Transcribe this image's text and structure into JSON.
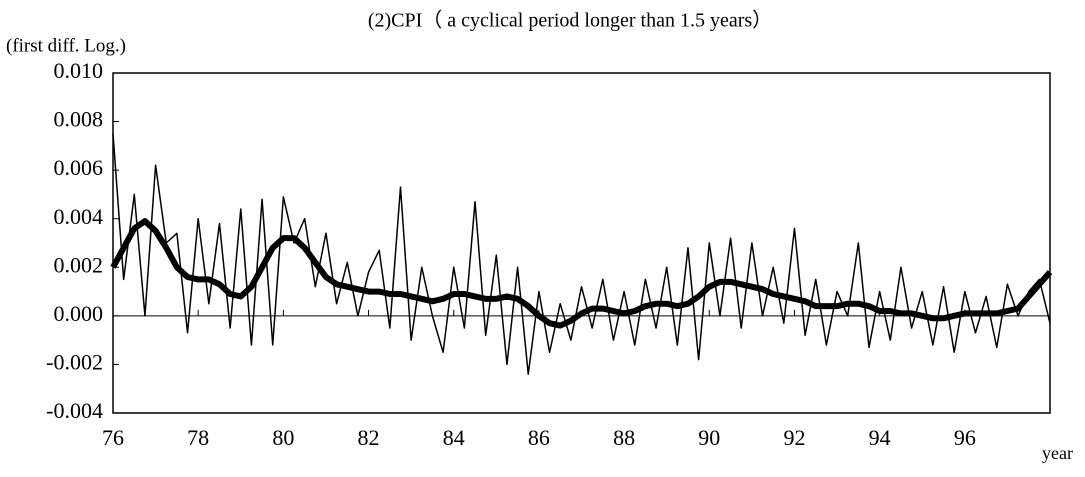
{
  "chart_data": {
    "type": "line",
    "title": "(2)CPI（ a cyclical period longer than 1.5 years）",
    "y_label": "(first diff. Log.)",
    "x_label": "year",
    "x": [
      76,
      76.25,
      76.5,
      76.75,
      77,
      77.25,
      77.5,
      77.75,
      78,
      78.25,
      78.5,
      78.75,
      79,
      79.25,
      79.5,
      79.75,
      80,
      80.25,
      80.5,
      80.75,
      81,
      81.25,
      81.5,
      81.75,
      82,
      82.25,
      82.5,
      82.75,
      83,
      83.25,
      83.5,
      83.75,
      84,
      84.25,
      84.5,
      84.75,
      85,
      85.25,
      85.5,
      85.75,
      86,
      86.25,
      86.5,
      86.75,
      87,
      87.25,
      87.5,
      87.75,
      88,
      88.25,
      88.5,
      88.75,
      89,
      89.25,
      89.5,
      89.75,
      90,
      90.25,
      90.5,
      90.75,
      91,
      91.25,
      91.5,
      91.75,
      92,
      92.25,
      92.5,
      92.75,
      93,
      93.25,
      93.5,
      93.75,
      94,
      94.25,
      94.5,
      94.75,
      95,
      95.25,
      95.5,
      95.75,
      96,
      96.25,
      96.5,
      96.75,
      97,
      97.25,
      97.5,
      97.75,
      98
    ],
    "series": [
      {
        "color": "#000000",
        "values": [
          0.0075,
          0.0015,
          0.005,
          0,
          0.0062,
          0.003,
          0.0034,
          -0.0007,
          0.004,
          0.0005,
          0.0038,
          -0.0005,
          0.0044,
          -0.0012,
          0.0048,
          -0.0012,
          0.0049,
          0.003,
          0.004,
          0.0012,
          0.0034,
          0.0005,
          0.0022,
          0,
          0.0018,
          0.0027,
          -0.0005,
          0.0053,
          -0.001,
          0.002,
          0,
          -0.0015,
          0.002,
          -0.0005,
          0.0047,
          -0.0008,
          0.0025,
          -0.002,
          0.002,
          -0.0024,
          0.001,
          -0.0015,
          0.0005,
          -0.001,
          0.0012,
          -0.0005,
          0.0015,
          -0.001,
          0.001,
          -0.0012,
          0.0015,
          -0.0005,
          0.002,
          -0.0012,
          0.0028,
          -0.0018,
          0.003,
          0,
          0.0032,
          -0.0005,
          0.003,
          0,
          0.002,
          -0.0003,
          0.0036,
          -0.0008,
          0.0015,
          -0.0012,
          0.001,
          0,
          0.003,
          -0.0013,
          0.001,
          -0.001,
          0.002,
          -0.0005,
          0.001,
          -0.0012,
          0.0012,
          -0.0015,
          0.001,
          -0.0007,
          0.0008,
          -0.0013,
          0.0013,
          0,
          0.001,
          0.0015,
          -0.0003
        ]
      },
      {
        "color": "#000000",
        "values": [
          0.002,
          0.0028,
          0.0036,
          0.0039,
          0.0035,
          0.0028,
          0.002,
          0.0016,
          0.0015,
          0.0015,
          0.0013,
          0.0009,
          0.0008,
          0.0012,
          0.002,
          0.0028,
          0.0032,
          0.0032,
          0.0028,
          0.0022,
          0.0016,
          0.0013,
          0.0012,
          0.0011,
          0.001,
          0.001,
          0.0009,
          0.0009,
          0.0008,
          0.0007,
          0.0006,
          0.0007,
          0.0009,
          0.0009,
          0.0008,
          0.0007,
          0.0007,
          0.0008,
          0.0007,
          0.0004,
          0,
          -0.0003,
          -0.0004,
          -0.0002,
          0.0001,
          0.0003,
          0.0003,
          0.0002,
          0.0001,
          0.0002,
          0.0004,
          0.0005,
          0.0005,
          0.0004,
          0.0005,
          0.0008,
          0.0012,
          0.0014,
          0.0014,
          0.0013,
          0.0012,
          0.0011,
          0.0009,
          0.0008,
          0.0007,
          0.0006,
          0.0004,
          0.0004,
          0.0004,
          0.0005,
          0.0005,
          0.0004,
          0.0002,
          0.0002,
          0.0001,
          0.0001,
          0,
          -0.0001,
          -0.0001,
          0,
          0.0001,
          0.0001,
          0.0001,
          0.0001,
          0.0002,
          0.0003,
          0.0008,
          0.0013,
          0.0018
        ]
      }
    ],
    "xlim": [
      76,
      98
    ],
    "xticks": [
      76,
      78,
      80,
      82,
      84,
      86,
      88,
      90,
      92,
      94,
      96
    ],
    "ylim": [
      -0.004,
      0.01
    ],
    "yticks": [
      {
        "value": -0.004,
        "label": "-0.004"
      },
      {
        "value": -0.002,
        "label": "-0.002"
      },
      {
        "value": 0,
        "label": "0.000"
      },
      {
        "value": 0.002,
        "label": "0.002"
      },
      {
        "value": 0.004,
        "label": "0.004"
      },
      {
        "value": 0.006,
        "label": "0.006"
      },
      {
        "value": 0.008,
        "label": "0.008"
      },
      {
        "value": 0.01,
        "label": "0.010"
      }
    ]
  }
}
